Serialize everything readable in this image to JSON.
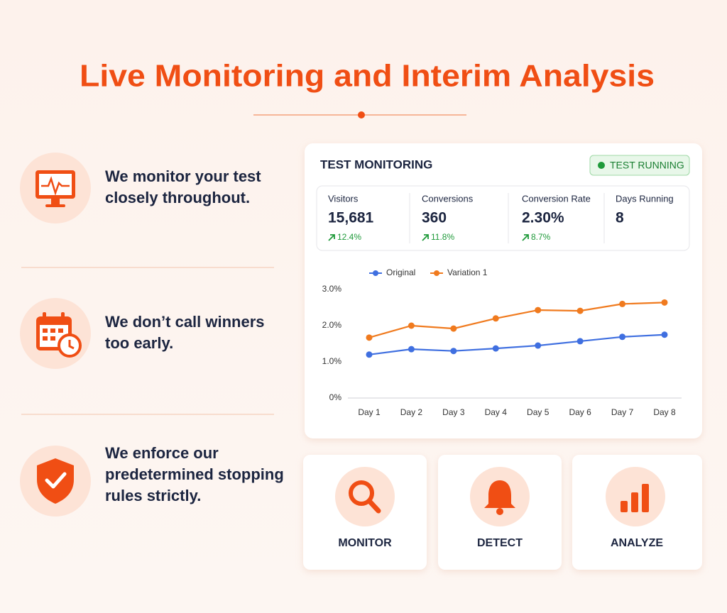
{
  "header": {
    "title": "Live Monitoring and Interim Analysis"
  },
  "principles": [
    {
      "lines": [
        "We monitor your test",
        "closely throughout."
      ]
    },
    {
      "lines": [
        "We don’t call winners",
        "too early."
      ]
    },
    {
      "lines": [
        "We enforce our",
        "predetermined stopping",
        "rules strictly."
      ]
    }
  ],
  "panel": {
    "title": "TEST MONITORING",
    "status": "TEST RUNNING",
    "stats": [
      {
        "label": "Visitors",
        "value": "15,681",
        "change": "12.4%"
      },
      {
        "label": "Conversions",
        "value": "360",
        "change": "11.8%"
      },
      {
        "label": "Conversion Rate",
        "value": "2.30%",
        "change": "8.7%"
      },
      {
        "label": "Days Running",
        "value": "8"
      }
    ]
  },
  "chart_data": {
    "type": "line",
    "categories": [
      "Day 1",
      "Day 2",
      "Day 3",
      "Day 4",
      "Day 5",
      "Day 6",
      "Day 7",
      "Day 8"
    ],
    "series": [
      {
        "name": "Original",
        "color": "#3f6fe0",
        "values": [
          1.2,
          1.35,
          1.3,
          1.37,
          1.45,
          1.57,
          1.69,
          1.75
        ]
      },
      {
        "name": "Variation 1",
        "color": "#f07a1e",
        "values": [
          1.67,
          2.0,
          1.92,
          2.2,
          2.43,
          2.41,
          2.6,
          2.64
        ]
      }
    ],
    "ylim": [
      0,
      3
    ],
    "yticks": [
      {
        "value": 0,
        "label": "0%"
      },
      {
        "value": 1,
        "label": "1.0%"
      },
      {
        "value": 2,
        "label": "2.0%"
      },
      {
        "value": 3,
        "label": "3.0%"
      }
    ],
    "legend": "top"
  },
  "steps": [
    {
      "label": "MONITOR"
    },
    {
      "label": "DETECT"
    },
    {
      "label": "ANALYZE"
    }
  ]
}
